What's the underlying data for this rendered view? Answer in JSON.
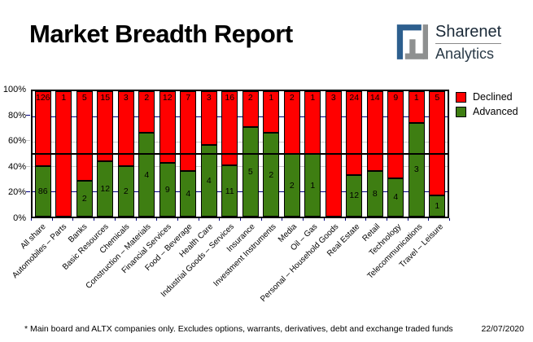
{
  "header": {
    "title": "Market Breadth Report",
    "logo": {
      "line1": "Sharenet",
      "line2": "Analytics"
    }
  },
  "legend": [
    {
      "label": "Declined",
      "color": "#ff0000"
    },
    {
      "label": "Advanced",
      "color": "#3e7e12"
    }
  ],
  "chart_data": {
    "type": "bar",
    "stacked": true,
    "stacking": "percent",
    "categories": [
      "All share",
      "Automobiles – Parts",
      "Banks",
      "Basic Resources",
      "Chemicals",
      "Construction – Materials",
      "Financial Services",
      "Food – Beverage",
      "Health Care",
      "Industrial Goods – Services",
      "Insurance",
      "Investment Instruments",
      "Media",
      "Oil – Gas",
      "Personal – Household Goods",
      "Real Estate",
      "Retail",
      "Technology",
      "Telecommunications",
      "Travel – Leisure"
    ],
    "series": [
      {
        "name": "Declined",
        "color": "#ff0000",
        "values": [
          126,
          1,
          5,
          15,
          3,
          2,
          12,
          7,
          3,
          16,
          2,
          1,
          2,
          1,
          3,
          24,
          14,
          9,
          1,
          5
        ]
      },
      {
        "name": "Advanced",
        "color": "#3e7e12",
        "values": [
          86,
          0,
          2,
          12,
          2,
          4,
          9,
          4,
          4,
          11,
          5,
          2,
          2,
          1,
          0,
          12,
          8,
          4,
          3,
          1
        ]
      }
    ],
    "ylim": [
      0,
      100
    ],
    "yticks": [
      "0%",
      "20%",
      "40%",
      "60%",
      "80%",
      "100%"
    ],
    "gridlines": [
      {
        "pct": 20,
        "color": "#000080"
      },
      {
        "pct": 40,
        "color": "#c9c9c9"
      },
      {
        "pct": 60,
        "color": "#c9c9c9"
      },
      {
        "pct": 80,
        "color": "#000080"
      }
    ],
    "reference_line_pct": 50,
    "legend_position": "top-right",
    "grid": true
  },
  "footer": {
    "note": "* Main board and ALTX companies only. Excludes options, warrants, derivatives, debt and exchange traded funds",
    "date": "22/07/2020"
  }
}
